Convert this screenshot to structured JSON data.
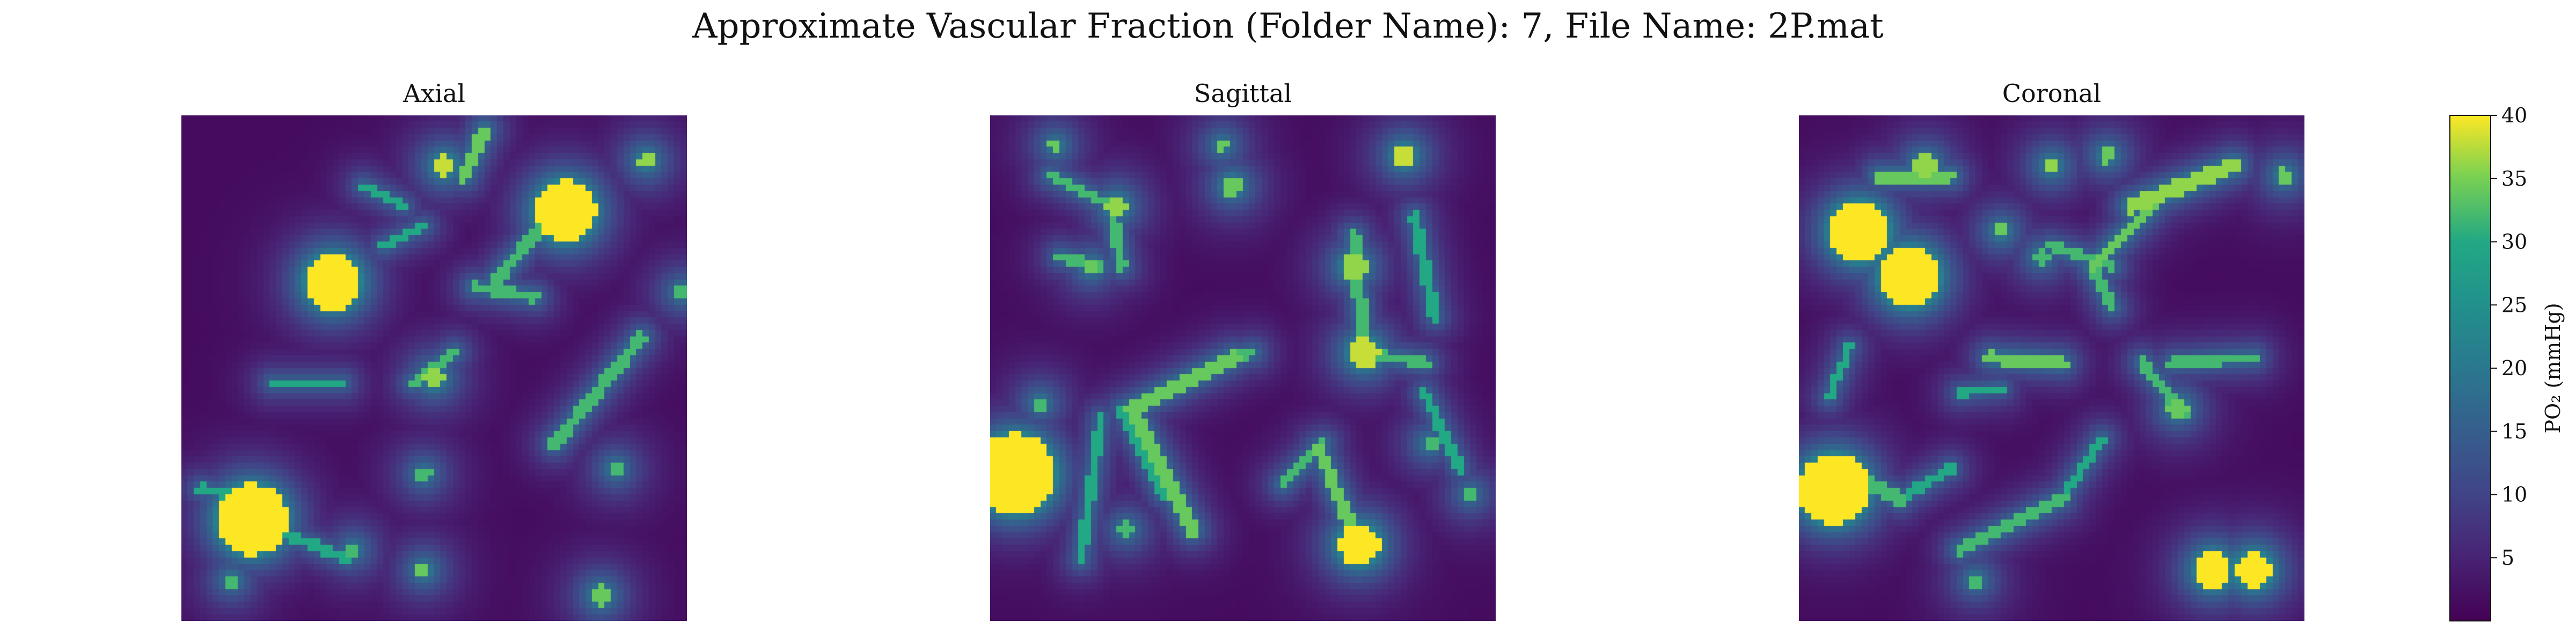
{
  "figure": {
    "title": "Approximate Vascular Fraction (Folder Name): 7, File Name: 2P.mat"
  },
  "chart_data": [
    {
      "type": "heatmap",
      "title": "Axial",
      "axes_visible": false,
      "colormap": "viridis",
      "value_range": [
        0,
        40
      ],
      "blobs": [
        {
          "x": 0.3,
          "y": 0.33,
          "r": 0.055,
          "v": 40
        },
        {
          "x": 0.76,
          "y": 0.19,
          "r": 0.06,
          "v": 40
        },
        {
          "x": 0.14,
          "y": 0.8,
          "r": 0.07,
          "v": 40
        },
        {
          "x": 0.52,
          "y": 0.1,
          "r": 0.02,
          "v": 38
        },
        {
          "x": 0.92,
          "y": 0.09,
          "r": 0.015,
          "v": 36
        },
        {
          "x": 0.5,
          "y": 0.52,
          "r": 0.02,
          "v": 36
        },
        {
          "x": 0.48,
          "y": 0.9,
          "r": 0.015,
          "v": 34
        },
        {
          "x": 0.83,
          "y": 0.95,
          "r": 0.02,
          "v": 34
        },
        {
          "x": 0.1,
          "y": 0.92,
          "r": 0.015,
          "v": 32
        },
        {
          "x": 0.34,
          "y": 0.86,
          "r": 0.015,
          "v": 32
        },
        {
          "x": 0.48,
          "y": 0.71,
          "r": 0.015,
          "v": 32
        },
        {
          "x": 0.86,
          "y": 0.7,
          "r": 0.015,
          "v": 32
        },
        {
          "x": 0.99,
          "y": 0.35,
          "r": 0.015,
          "v": 32
        }
      ],
      "segments": [
        {
          "x1": 0.56,
          "y1": 0.12,
          "x2": 0.6,
          "y2": 0.03,
          "w": 0.012,
          "v": 34
        },
        {
          "x1": 0.62,
          "y1": 0.33,
          "x2": 0.74,
          "y2": 0.19,
          "w": 0.012,
          "v": 32
        },
        {
          "x1": 0.58,
          "y1": 0.34,
          "x2": 0.7,
          "y2": 0.36,
          "w": 0.01,
          "v": 32
        },
        {
          "x1": 0.74,
          "y1": 0.65,
          "x2": 0.91,
          "y2": 0.44,
          "w": 0.012,
          "v": 32
        },
        {
          "x1": 0.46,
          "y1": 0.53,
          "x2": 0.54,
          "y2": 0.47,
          "w": 0.01,
          "v": 32
        },
        {
          "x1": 0.18,
          "y1": 0.53,
          "x2": 0.32,
          "y2": 0.53,
          "w": 0.008,
          "v": 30
        },
        {
          "x1": 0.04,
          "y1": 0.74,
          "x2": 0.14,
          "y2": 0.76,
          "w": 0.01,
          "v": 30
        },
        {
          "x1": 0.14,
          "y1": 0.8,
          "x2": 0.33,
          "y2": 0.88,
          "w": 0.01,
          "v": 30
        },
        {
          "x1": 0.36,
          "y1": 0.14,
          "x2": 0.44,
          "y2": 0.18,
          "w": 0.008,
          "v": 30
        },
        {
          "x1": 0.4,
          "y1": 0.26,
          "x2": 0.48,
          "y2": 0.22,
          "w": 0.008,
          "v": 30
        }
      ]
    },
    {
      "type": "heatmap",
      "title": "Sagittal",
      "axes_visible": false,
      "colormap": "viridis",
      "value_range": [
        0,
        40
      ],
      "blobs": [
        {
          "x": 0.05,
          "y": 0.71,
          "r": 0.08,
          "v": 40
        },
        {
          "x": 0.73,
          "y": 0.85,
          "r": 0.04,
          "v": 40
        },
        {
          "x": 0.74,
          "y": 0.47,
          "r": 0.03,
          "v": 38
        },
        {
          "x": 0.72,
          "y": 0.3,
          "r": 0.025,
          "v": 36
        },
        {
          "x": 0.82,
          "y": 0.08,
          "r": 0.02,
          "v": 38
        },
        {
          "x": 0.25,
          "y": 0.18,
          "r": 0.02,
          "v": 36
        },
        {
          "x": 0.48,
          "y": 0.14,
          "r": 0.02,
          "v": 34
        },
        {
          "x": 0.13,
          "y": 0.06,
          "r": 0.012,
          "v": 34
        },
        {
          "x": 0.46,
          "y": 0.06,
          "r": 0.012,
          "v": 34
        },
        {
          "x": 0.2,
          "y": 0.3,
          "r": 0.015,
          "v": 34
        },
        {
          "x": 0.1,
          "y": 0.57,
          "r": 0.015,
          "v": 32
        },
        {
          "x": 0.27,
          "y": 0.82,
          "r": 0.015,
          "v": 32
        },
        {
          "x": 0.87,
          "y": 0.65,
          "r": 0.015,
          "v": 32
        },
        {
          "x": 0.95,
          "y": 0.75,
          "r": 0.012,
          "v": 32
        }
      ],
      "segments": [
        {
          "x1": 0.12,
          "y1": 0.12,
          "x2": 0.24,
          "y2": 0.18,
          "w": 0.01,
          "v": 32
        },
        {
          "x1": 0.24,
          "y1": 0.18,
          "x2": 0.26,
          "y2": 0.3,
          "w": 0.01,
          "v": 32
        },
        {
          "x1": 0.14,
          "y1": 0.28,
          "x2": 0.22,
          "y2": 0.3,
          "w": 0.01,
          "v": 32
        },
        {
          "x1": 0.28,
          "y1": 0.58,
          "x2": 0.48,
          "y2": 0.48,
          "w": 0.014,
          "v": 34
        },
        {
          "x1": 0.48,
          "y1": 0.48,
          "x2": 0.52,
          "y2": 0.47,
          "w": 0.01,
          "v": 32
        },
        {
          "x1": 0.28,
          "y1": 0.58,
          "x2": 0.4,
          "y2": 0.82,
          "w": 0.014,
          "v": 34
        },
        {
          "x1": 0.22,
          "y1": 0.6,
          "x2": 0.18,
          "y2": 0.88,
          "w": 0.01,
          "v": 30
        },
        {
          "x1": 0.26,
          "y1": 0.58,
          "x2": 0.34,
          "y2": 0.75,
          "w": 0.01,
          "v": 30
        },
        {
          "x1": 0.65,
          "y1": 0.66,
          "x2": 0.73,
          "y2": 0.85,
          "w": 0.012,
          "v": 34
        },
        {
          "x1": 0.58,
          "y1": 0.73,
          "x2": 0.66,
          "y2": 0.65,
          "w": 0.01,
          "v": 32
        },
        {
          "x1": 0.72,
          "y1": 0.24,
          "x2": 0.74,
          "y2": 0.46,
          "w": 0.012,
          "v": 32
        },
        {
          "x1": 0.74,
          "y1": 0.47,
          "x2": 0.86,
          "y2": 0.49,
          "w": 0.01,
          "v": 32
        },
        {
          "x1": 0.84,
          "y1": 0.2,
          "x2": 0.88,
          "y2": 0.4,
          "w": 0.01,
          "v": 30
        },
        {
          "x1": 0.86,
          "y1": 0.55,
          "x2": 0.93,
          "y2": 0.7,
          "w": 0.01,
          "v": 30
        }
      ]
    },
    {
      "type": "heatmap",
      "title": "Coronal",
      "axes_visible": false,
      "colormap": "viridis",
      "value_range": [
        0,
        40
      ],
      "blobs": [
        {
          "x": 0.12,
          "y": 0.23,
          "r": 0.06,
          "v": 40
        },
        {
          "x": 0.22,
          "y": 0.32,
          "r": 0.06,
          "v": 40
        },
        {
          "x": 0.07,
          "y": 0.74,
          "r": 0.07,
          "v": 40
        },
        {
          "x": 0.82,
          "y": 0.9,
          "r": 0.035,
          "v": 40
        },
        {
          "x": 0.9,
          "y": 0.9,
          "r": 0.035,
          "v": 40
        },
        {
          "x": 0.25,
          "y": 0.1,
          "r": 0.02,
          "v": 36
        },
        {
          "x": 0.5,
          "y": 0.1,
          "r": 0.015,
          "v": 36
        },
        {
          "x": 0.61,
          "y": 0.08,
          "r": 0.015,
          "v": 34
        },
        {
          "x": 0.96,
          "y": 0.12,
          "r": 0.015,
          "v": 34
        },
        {
          "x": 0.75,
          "y": 0.58,
          "r": 0.02,
          "v": 34
        },
        {
          "x": 0.4,
          "y": 0.23,
          "r": 0.015,
          "v": 34
        },
        {
          "x": 0.35,
          "y": 0.92,
          "r": 0.015,
          "v": 32
        },
        {
          "x": 0.48,
          "y": 0.28,
          "r": 0.015,
          "v": 32
        }
      ],
      "segments": [
        {
          "x1": 0.16,
          "y1": 0.12,
          "x2": 0.3,
          "y2": 0.12,
          "w": 0.012,
          "v": 34
        },
        {
          "x1": 0.66,
          "y1": 0.18,
          "x2": 0.86,
          "y2": 0.1,
          "w": 0.016,
          "v": 36
        },
        {
          "x1": 0.58,
          "y1": 0.3,
          "x2": 0.7,
          "y2": 0.18,
          "w": 0.012,
          "v": 34
        },
        {
          "x1": 0.5,
          "y1": 0.26,
          "x2": 0.62,
          "y2": 0.3,
          "w": 0.01,
          "v": 32
        },
        {
          "x1": 0.58,
          "y1": 0.3,
          "x2": 0.62,
          "y2": 0.38,
          "w": 0.01,
          "v": 32
        },
        {
          "x1": 0.38,
          "y1": 0.48,
          "x2": 0.52,
          "y2": 0.49,
          "w": 0.012,
          "v": 34
        },
        {
          "x1": 0.32,
          "y1": 0.55,
          "x2": 0.4,
          "y2": 0.54,
          "w": 0.008,
          "v": 30
        },
        {
          "x1": 0.68,
          "y1": 0.49,
          "x2": 0.76,
          "y2": 0.59,
          "w": 0.01,
          "v": 32
        },
        {
          "x1": 0.74,
          "y1": 0.49,
          "x2": 0.9,
          "y2": 0.48,
          "w": 0.01,
          "v": 32
        },
        {
          "x1": 0.08,
          "y1": 0.7,
          "x2": 0.2,
          "y2": 0.76,
          "w": 0.012,
          "v": 32
        },
        {
          "x1": 0.2,
          "y1": 0.76,
          "x2": 0.3,
          "y2": 0.7,
          "w": 0.01,
          "v": 30
        },
        {
          "x1": 0.32,
          "y1": 0.86,
          "x2": 0.52,
          "y2": 0.76,
          "w": 0.012,
          "v": 32
        },
        {
          "x1": 0.52,
          "y1": 0.76,
          "x2": 0.6,
          "y2": 0.64,
          "w": 0.01,
          "v": 30
        },
        {
          "x1": 0.06,
          "y1": 0.56,
          "x2": 0.1,
          "y2": 0.46,
          "w": 0.008,
          "v": 30
        }
      ]
    }
  ],
  "colorbar": {
    "label": "PO₂ (mmHg)",
    "ticks": [
      5,
      10,
      15,
      20,
      25,
      30,
      35,
      40
    ],
    "range": [
      0,
      40
    ]
  }
}
